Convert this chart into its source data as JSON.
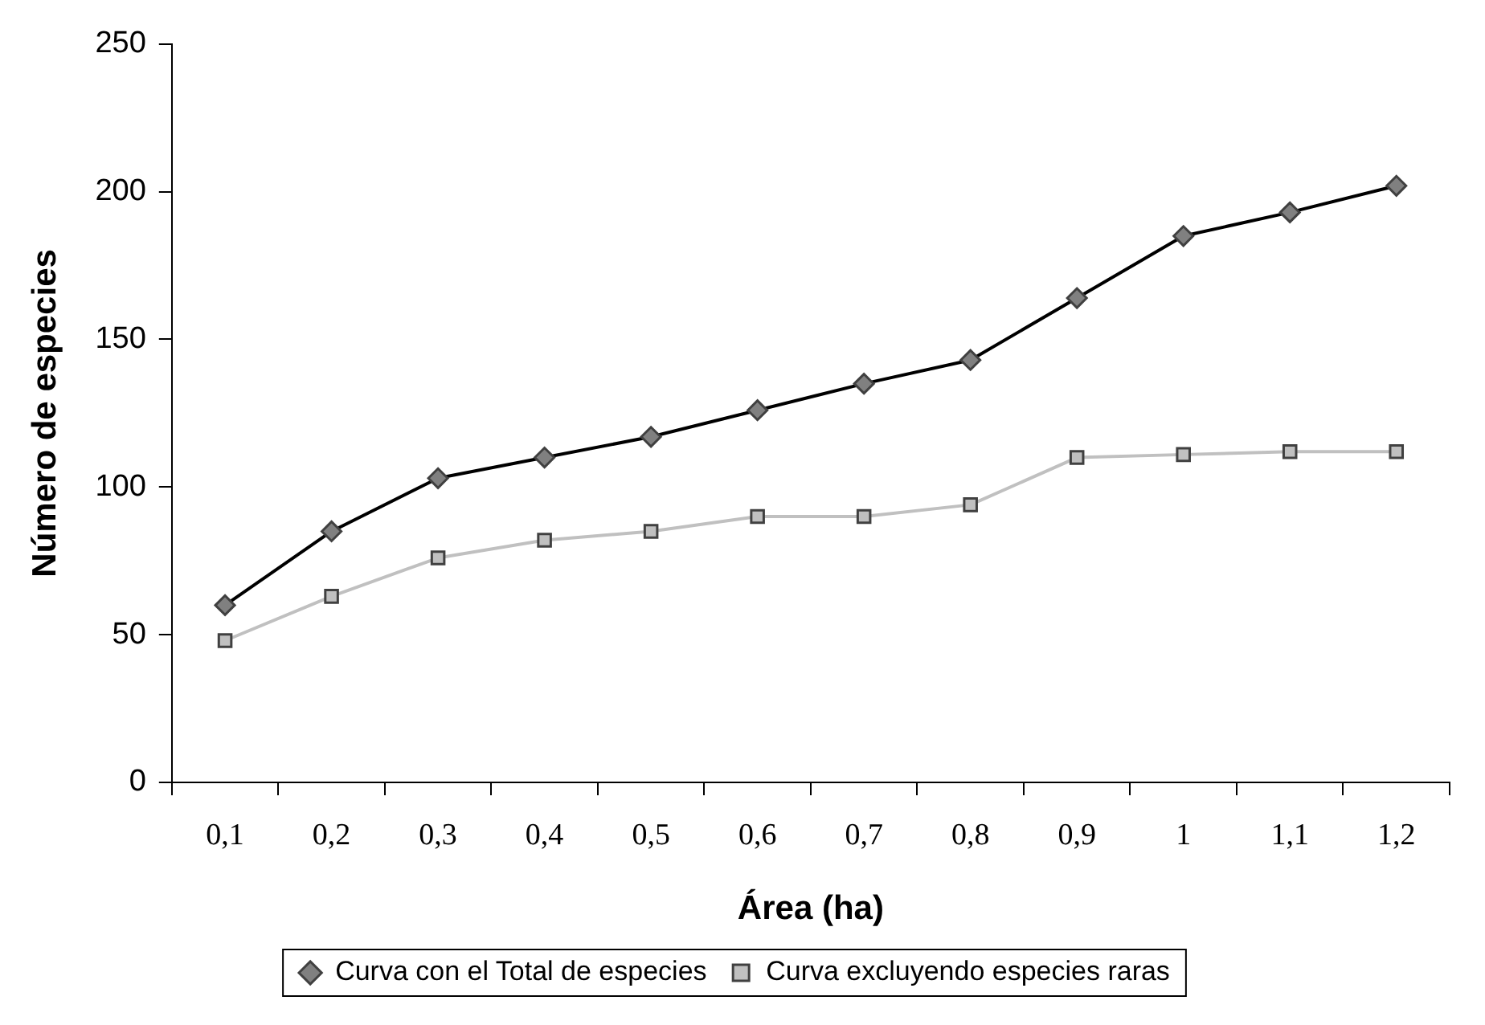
{
  "chart_data": {
    "type": "line",
    "xlabel": "Área (ha)",
    "ylabel": "Número de especies",
    "categories": [
      "0,1",
      "0,2",
      "0,3",
      "0,4",
      "0,5",
      "0,6",
      "0,7",
      "0,8",
      "0,9",
      "1",
      "1,1",
      "1,2"
    ],
    "series": [
      {
        "name": "Curva con el Total de especies",
        "color": "#000000",
        "marker": "diamond",
        "values": [
          60,
          85,
          103,
          110,
          117,
          126,
          135,
          143,
          164,
          185,
          193,
          202
        ]
      },
      {
        "name": "Curva excluyendo especies raras",
        "color": "#c0c0c0",
        "marker": "square",
        "values": [
          48,
          63,
          76,
          82,
          85,
          90,
          90,
          94,
          110,
          111,
          112,
          112
        ]
      }
    ],
    "ylim": [
      0,
      250
    ],
    "yticks": [
      0,
      50,
      100,
      150,
      200,
      250
    ],
    "grid": false,
    "legend": "bottom"
  }
}
